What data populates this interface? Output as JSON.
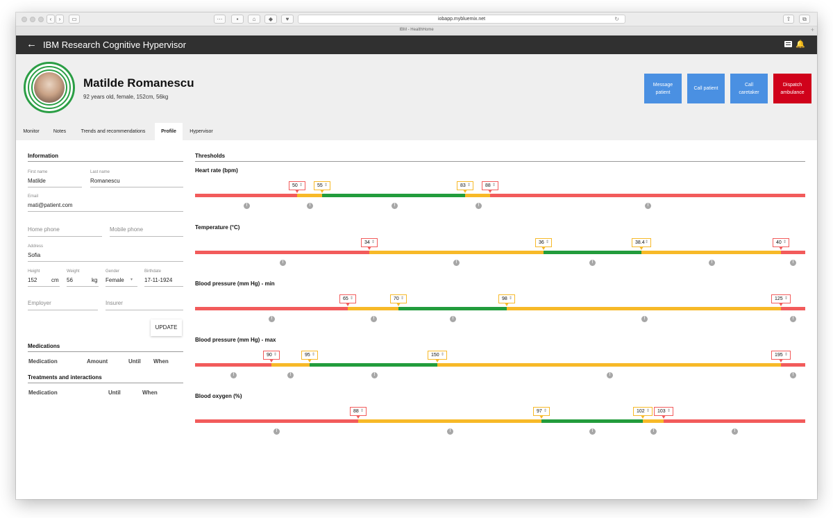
{
  "browser": {
    "url": "iobapp.mybluemix.net",
    "tab_title": "IBM - HealthHome"
  },
  "appbar": {
    "title": "IBM Research Cognitive Hypervisor",
    "back_icon": "arrow-left-icon",
    "chat_icon": "chat-icon",
    "bell_icon": "bell-icon"
  },
  "patient": {
    "name": "Matilde Romanescu",
    "info": "92 years old, female, 152cm, 56kg"
  },
  "actions": {
    "message": "Message patient",
    "call_patient": "Call patient",
    "call_caretaker": "Call caretaker",
    "dispatch": "Dispatch ambulance"
  },
  "tabs": [
    "Monitor",
    "Notes",
    "Trends and recommendations",
    "Profile",
    "Hypervisor"
  ],
  "information": {
    "title": "Information",
    "first_name_label": "First name",
    "first_name": "Matilde",
    "last_name_label": "Last name",
    "last_name": "Romanescu",
    "email_label": "Email",
    "email": "mati@patient.com",
    "home_phone_ph": "Home phone",
    "mobile_phone_ph": "Mobile phone",
    "address_label": "Address",
    "address": "Sofia",
    "height_label": "Height",
    "height": "152",
    "height_unit": "cm",
    "weight_label": "Weight",
    "weight": "56",
    "weight_unit": "kg",
    "gender_label": "Gender",
    "gender": "Female",
    "birthdate_label": "Birthdate",
    "birthdate": "17-11-1924",
    "employer_ph": "Employer",
    "insurer_ph": "Insurer",
    "update": "UPDATE"
  },
  "medications": {
    "title": "Medications",
    "cols": [
      "Medication",
      "Amount",
      "Until",
      "When"
    ]
  },
  "treatments": {
    "title": "Treatments and interactions",
    "cols": [
      "Medication",
      "Until",
      "When"
    ]
  },
  "thresholds": {
    "title": "Thresholds",
    "colors": {
      "red": "#f25b5b",
      "yellow": "#f7b928",
      "green": "#229c3c"
    },
    "metrics": [
      {
        "title": "Heart rate (bpm)",
        "segments": [
          {
            "color": "red",
            "from": 0,
            "to": 0.167
          },
          {
            "color": "yellow",
            "from": 0.167,
            "to": 0.208
          },
          {
            "color": "green",
            "from": 0.208,
            "to": 0.443
          },
          {
            "color": "yellow",
            "from": 0.443,
            "to": 0.484
          },
          {
            "color": "red",
            "from": 0.484,
            "to": 1
          }
        ],
        "thresholds": [
          {
            "value": "50",
            "at": 0.167,
            "color": "red"
          },
          {
            "value": "55",
            "at": 0.208,
            "color": "yellow"
          },
          {
            "value": "83",
            "at": 0.443,
            "color": "yellow"
          },
          {
            "value": "88",
            "at": 0.484,
            "color": "red"
          }
        ],
        "dots": [
          0.084,
          0.188,
          0.326,
          0.464,
          0.742
        ]
      },
      {
        "title": "Temperature (°C)",
        "segments": [
          {
            "color": "red",
            "from": 0,
            "to": 0.285
          },
          {
            "color": "yellow",
            "from": 0.285,
            "to": 0.571
          },
          {
            "color": "green",
            "from": 0.571,
            "to": 0.731
          },
          {
            "color": "yellow",
            "from": 0.731,
            "to": 0.96
          },
          {
            "color": "red",
            "from": 0.96,
            "to": 1
          }
        ],
        "thresholds": [
          {
            "value": "34",
            "at": 0.285,
            "color": "red"
          },
          {
            "value": "36",
            "at": 0.571,
            "color": "yellow"
          },
          {
            "value": "38.4",
            "at": 0.731,
            "color": "yellow"
          },
          {
            "value": "40",
            "at": 0.96,
            "color": "red"
          }
        ],
        "dots": [
          0.143,
          0.428,
          0.651,
          0.846,
          0.98
        ]
      },
      {
        "title": "Blood pressure (mm Hg) - min",
        "segments": [
          {
            "color": "red",
            "from": 0,
            "to": 0.25
          },
          {
            "color": "yellow",
            "from": 0.25,
            "to": 0.333
          },
          {
            "color": "green",
            "from": 0.333,
            "to": 0.511
          },
          {
            "color": "yellow",
            "from": 0.511,
            "to": 0.96
          },
          {
            "color": "red",
            "from": 0.96,
            "to": 1
          }
        ],
        "thresholds": [
          {
            "value": "65",
            "at": 0.25,
            "color": "red"
          },
          {
            "value": "70",
            "at": 0.333,
            "color": "yellow"
          },
          {
            "value": "98",
            "at": 0.511,
            "color": "yellow"
          },
          {
            "value": "125",
            "at": 0.96,
            "color": "red"
          }
        ],
        "dots": [
          0.125,
          0.292,
          0.422,
          0.736,
          0.98
        ]
      },
      {
        "title": "Blood pressure (mm Hg) - max",
        "segments": [
          {
            "color": "red",
            "from": 0,
            "to": 0.125
          },
          {
            "color": "yellow",
            "from": 0.125,
            "to": 0.188
          },
          {
            "color": "green",
            "from": 0.188,
            "to": 0.397
          },
          {
            "color": "yellow",
            "from": 0.397,
            "to": 0.96
          },
          {
            "color": "red",
            "from": 0.96,
            "to": 1
          }
        ],
        "thresholds": [
          {
            "value": "90",
            "at": 0.125,
            "color": "red"
          },
          {
            "value": "95",
            "at": 0.188,
            "color": "yellow"
          },
          {
            "value": "150",
            "at": 0.397,
            "color": "yellow"
          },
          {
            "value": "195",
            "at": 0.96,
            "color": "red"
          }
        ],
        "dots": [
          0.063,
          0.156,
          0.293,
          0.679,
          0.98
        ]
      },
      {
        "title": "Blood oxygen (%)",
        "segments": [
          {
            "color": "red",
            "from": 0,
            "to": 0.267
          },
          {
            "color": "yellow",
            "from": 0.267,
            "to": 0.568
          },
          {
            "color": "green",
            "from": 0.568,
            "to": 0.734
          },
          {
            "color": "yellow",
            "from": 0.734,
            "to": 0.768
          },
          {
            "color": "red",
            "from": 0.768,
            "to": 1
          }
        ],
        "thresholds": [
          {
            "value": "88",
            "at": 0.267,
            "color": "red"
          },
          {
            "value": "97",
            "at": 0.568,
            "color": "yellow"
          },
          {
            "value": "102",
            "at": 0.734,
            "color": "yellow"
          },
          {
            "value": "103",
            "at": 0.768,
            "color": "red"
          }
        ],
        "dots": [
          0.133,
          0.418,
          0.651,
          0.751,
          0.884
        ]
      }
    ]
  }
}
